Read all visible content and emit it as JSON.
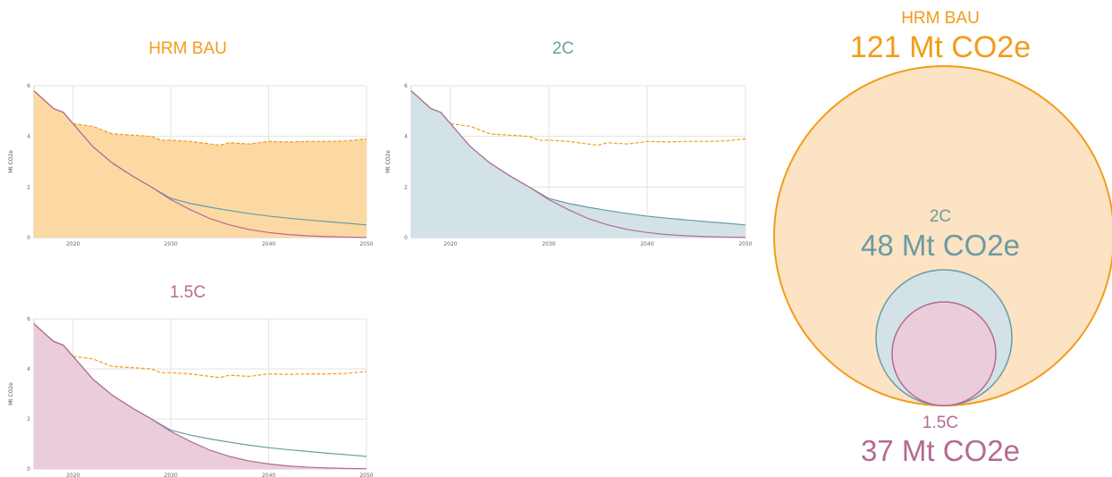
{
  "colors": {
    "bau": "#F39C18",
    "bau_fill": "#FCD9A3",
    "c2": "#6A9BA5",
    "c2_fill": "#D3E2E6",
    "c15": "#B46A93",
    "c15_fill": "#EACCDB",
    "bubble_bau_fill": "#FBE3C3"
  },
  "chart_data": [
    {
      "type": "area",
      "title": "HRM BAU",
      "ylabel": "Mt CO2e",
      "xlim": [
        2016,
        2050
      ],
      "ylim": [
        0,
        6
      ],
      "xticks": [
        2020,
        2030,
        2040,
        2050
      ],
      "yticks": [
        0,
        2,
        4,
        6
      ],
      "filled_series": "HRM BAU",
      "series": [
        {
          "name": "HRM BAU",
          "style": "dashed-after-2020",
          "x": [
            2016,
            2018,
            2019,
            2020,
            2022,
            2024,
            2026,
            2028,
            2029,
            2030,
            2032,
            2034,
            2035,
            2036,
            2038,
            2040,
            2042,
            2044,
            2046,
            2048,
            2050
          ],
          "y": [
            5.8,
            5.1,
            4.95,
            4.5,
            4.4,
            4.1,
            4.05,
            4.0,
            3.85,
            3.85,
            3.8,
            3.7,
            3.65,
            3.75,
            3.7,
            3.8,
            3.78,
            3.8,
            3.8,
            3.82,
            3.9
          ]
        },
        {
          "name": "2C",
          "x": [
            2016,
            2018,
            2019,
            2020,
            2022,
            2024,
            2026,
            2028,
            2030,
            2032,
            2034,
            2036,
            2038,
            2040,
            2042,
            2044,
            2046,
            2048,
            2050
          ],
          "y": [
            5.8,
            5.1,
            4.95,
            4.5,
            3.6,
            2.95,
            2.45,
            2.0,
            1.55,
            1.35,
            1.2,
            1.07,
            0.95,
            0.85,
            0.77,
            0.7,
            0.63,
            0.57,
            0.5
          ]
        },
        {
          "name": "1.5C",
          "x": [
            2016,
            2018,
            2019,
            2020,
            2022,
            2024,
            2026,
            2028,
            2030,
            2032,
            2034,
            2036,
            2038,
            2040,
            2042,
            2044,
            2046,
            2048,
            2050
          ],
          "y": [
            5.8,
            5.1,
            4.95,
            4.5,
            3.6,
            2.95,
            2.45,
            2.0,
            1.5,
            1.1,
            0.75,
            0.5,
            0.32,
            0.2,
            0.12,
            0.07,
            0.04,
            0.02,
            0.01
          ]
        }
      ]
    },
    {
      "type": "area",
      "title": "2C",
      "ylabel": "Mt CO2e",
      "xlim": [
        2016,
        2050
      ],
      "ylim": [
        0,
        6
      ],
      "xticks": [
        2020,
        2030,
        2040,
        2050
      ],
      "yticks": [
        0,
        2,
        4,
        6
      ],
      "filled_series": "2C",
      "series": [
        {
          "name": "HRM BAU",
          "style": "dashed-after-2020",
          "x": [
            2016,
            2018,
            2019,
            2020,
            2022,
            2024,
            2026,
            2028,
            2029,
            2030,
            2032,
            2034,
            2035,
            2036,
            2038,
            2040,
            2042,
            2044,
            2046,
            2048,
            2050
          ],
          "y": [
            5.8,
            5.1,
            4.95,
            4.5,
            4.4,
            4.1,
            4.05,
            4.0,
            3.85,
            3.85,
            3.8,
            3.7,
            3.65,
            3.75,
            3.7,
            3.8,
            3.78,
            3.8,
            3.8,
            3.82,
            3.9
          ]
        },
        {
          "name": "2C",
          "x": [
            2016,
            2018,
            2019,
            2020,
            2022,
            2024,
            2026,
            2028,
            2030,
            2032,
            2034,
            2036,
            2038,
            2040,
            2042,
            2044,
            2046,
            2048,
            2050
          ],
          "y": [
            5.8,
            5.1,
            4.95,
            4.5,
            3.6,
            2.95,
            2.45,
            2.0,
            1.55,
            1.35,
            1.2,
            1.07,
            0.95,
            0.85,
            0.77,
            0.7,
            0.63,
            0.57,
            0.5
          ]
        },
        {
          "name": "1.5C",
          "x": [
            2016,
            2018,
            2019,
            2020,
            2022,
            2024,
            2026,
            2028,
            2030,
            2032,
            2034,
            2036,
            2038,
            2040,
            2042,
            2044,
            2046,
            2048,
            2050
          ],
          "y": [
            5.8,
            5.1,
            4.95,
            4.5,
            3.6,
            2.95,
            2.45,
            2.0,
            1.5,
            1.1,
            0.75,
            0.5,
            0.32,
            0.2,
            0.12,
            0.07,
            0.04,
            0.02,
            0.01
          ]
        }
      ]
    },
    {
      "type": "area",
      "title": "1.5C",
      "ylabel": "Mt CO2e",
      "xlim": [
        2016,
        2050
      ],
      "ylim": [
        0,
        6
      ],
      "xticks": [
        2020,
        2030,
        2040,
        2050
      ],
      "yticks": [
        0,
        2,
        4,
        6
      ],
      "filled_series": "1.5C",
      "series": [
        {
          "name": "HRM BAU",
          "style": "dashed-after-2020",
          "x": [
            2016,
            2018,
            2019,
            2020,
            2022,
            2024,
            2026,
            2028,
            2029,
            2030,
            2032,
            2034,
            2035,
            2036,
            2038,
            2040,
            2042,
            2044,
            2046,
            2048,
            2050
          ],
          "y": [
            5.8,
            5.1,
            4.95,
            4.5,
            4.4,
            4.1,
            4.05,
            4.0,
            3.85,
            3.85,
            3.8,
            3.7,
            3.65,
            3.75,
            3.7,
            3.8,
            3.78,
            3.8,
            3.8,
            3.82,
            3.9
          ]
        },
        {
          "name": "2C",
          "x": [
            2016,
            2018,
            2019,
            2020,
            2022,
            2024,
            2026,
            2028,
            2030,
            2032,
            2034,
            2036,
            2038,
            2040,
            2042,
            2044,
            2046,
            2048,
            2050
          ],
          "y": [
            5.8,
            5.1,
            4.95,
            4.5,
            3.6,
            2.95,
            2.45,
            2.0,
            1.55,
            1.35,
            1.2,
            1.07,
            0.95,
            0.85,
            0.77,
            0.7,
            0.63,
            0.57,
            0.5
          ]
        },
        {
          "name": "1.5C",
          "x": [
            2016,
            2018,
            2019,
            2020,
            2022,
            2024,
            2026,
            2028,
            2030,
            2032,
            2034,
            2036,
            2038,
            2040,
            2042,
            2044,
            2046,
            2048,
            2050
          ],
          "y": [
            5.8,
            5.1,
            4.95,
            4.5,
            3.6,
            2.95,
            2.45,
            2.0,
            1.5,
            1.1,
            0.75,
            0.5,
            0.32,
            0.2,
            0.12,
            0.07,
            0.04,
            0.02,
            0.01
          ]
        }
      ]
    },
    {
      "type": "bubble",
      "bubbles": [
        {
          "name": "HRM BAU",
          "value": 121,
          "unit": "Mt CO2e",
          "label": "121 Mt CO2e"
        },
        {
          "name": "2C",
          "value": 48,
          "unit": "Mt CO2e",
          "label": "48 Mt CO2e"
        },
        {
          "name": "1.5C",
          "value": 37,
          "unit": "Mt CO2e",
          "label": "37 Mt CO2e"
        }
      ]
    }
  ]
}
